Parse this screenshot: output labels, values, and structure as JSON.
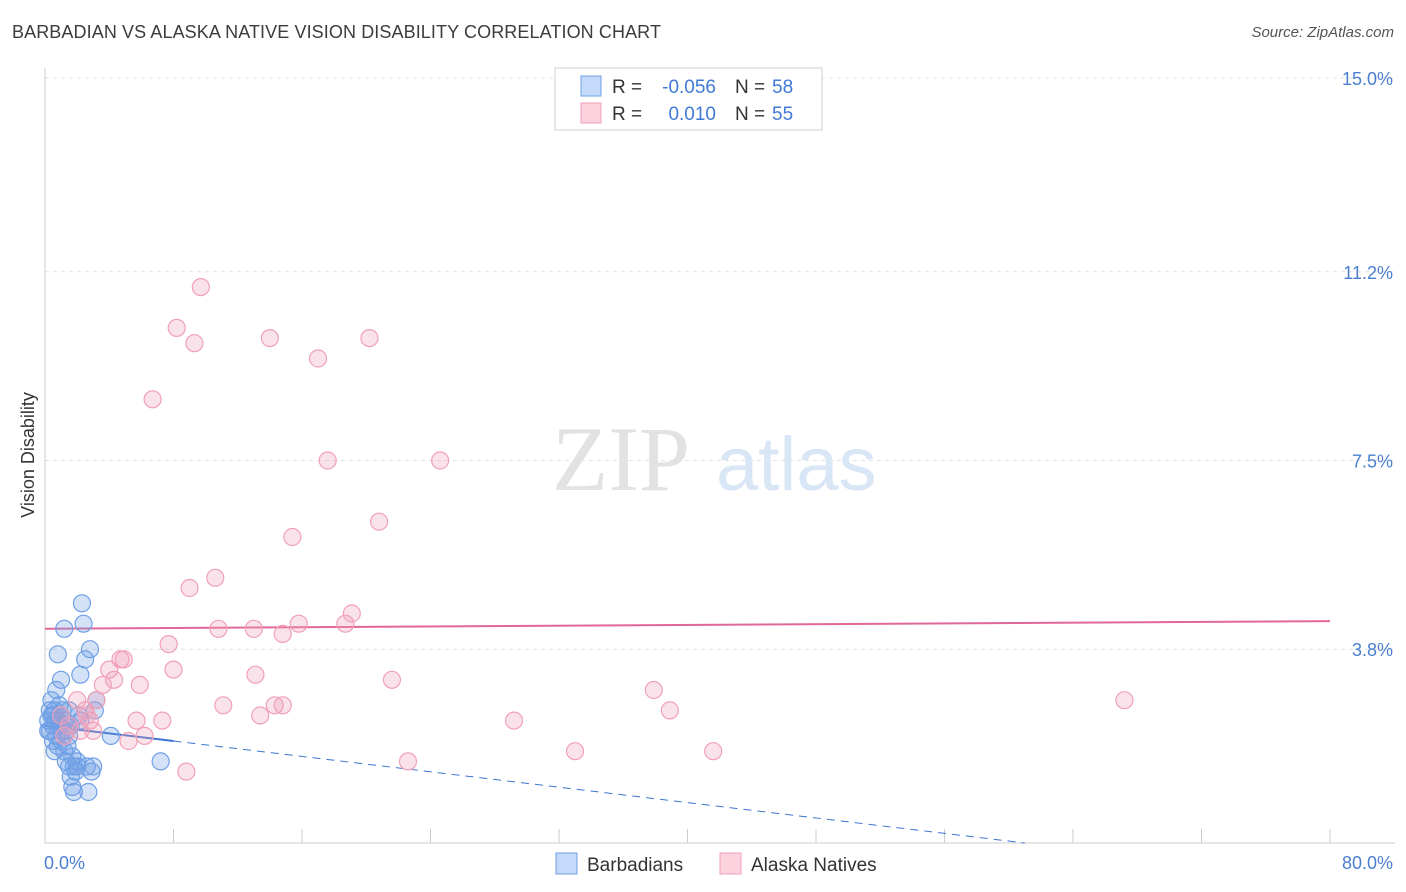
{
  "title": "BARBADIAN VS ALASKA NATIVE VISION DISABILITY CORRELATION CHART",
  "source": "Source: ZipAtlas.com",
  "watermark": {
    "zip": "ZIP",
    "atlas": "atlas"
  },
  "chart_data": {
    "type": "scatter",
    "xlabel": "",
    "ylabel": "Vision Disability",
    "xlim": [
      0,
      80
    ],
    "ylim": [
      0,
      15
    ],
    "x_tick_labels": [
      "0.0%",
      "80.0%"
    ],
    "y_ticks": [
      3.8,
      7.5,
      11.2,
      15.0
    ],
    "y_tick_labels": [
      "3.8%",
      "7.5%",
      "11.2%",
      "15.0%"
    ],
    "grid": true,
    "legend_placement": "top-center",
    "bottom_legend": [
      "Barbadians",
      "Alaska Natives"
    ],
    "stats": [
      {
        "r_label": "R =",
        "r_value": "-0.056",
        "n_label": "N =",
        "n_value": "58"
      },
      {
        "r_label": "R =",
        "r_value": "0.010",
        "n_label": "N =",
        "n_value": "55"
      }
    ],
    "series": [
      {
        "name": "Barbadians",
        "color": "#6fa0e6",
        "trend": {
          "x0": 0,
          "y0": 2.3,
          "x1": 8,
          "y1": 2.0,
          "dashed_to_x": 61,
          "dashed_to_y": 0
        },
        "points": [
          [
            0.2,
            2.4
          ],
          [
            0.3,
            2.2
          ],
          [
            0.4,
            2.5
          ],
          [
            0.5,
            2.3
          ],
          [
            0.6,
            2.6
          ],
          [
            0.7,
            2.1
          ],
          [
            0.8,
            2.4
          ],
          [
            0.5,
            2.0
          ],
          [
            0.6,
            1.8
          ],
          [
            0.9,
            2.7
          ],
          [
            1.0,
            2.5
          ],
          [
            1.1,
            2.2
          ],
          [
            1.2,
            2.4
          ],
          [
            0.4,
            2.8
          ],
          [
            0.7,
            3.0
          ],
          [
            0.8,
            3.7
          ],
          [
            1.0,
            3.2
          ],
          [
            1.2,
            4.2
          ],
          [
            1.5,
            2.6
          ],
          [
            1.6,
            2.3
          ],
          [
            1.4,
            1.9
          ],
          [
            1.3,
            1.6
          ],
          [
            1.5,
            1.5
          ],
          [
            1.6,
            1.3
          ],
          [
            1.7,
            1.1
          ],
          [
            1.8,
            1.0
          ],
          [
            1.9,
            1.4
          ],
          [
            2.0,
            1.6
          ],
          [
            2.1,
            2.5
          ],
          [
            2.2,
            3.3
          ],
          [
            2.3,
            4.7
          ],
          [
            2.4,
            4.3
          ],
          [
            2.5,
            3.6
          ],
          [
            2.6,
            1.5
          ],
          [
            2.7,
            1.0
          ],
          [
            2.8,
            3.8
          ],
          [
            2.9,
            1.4
          ],
          [
            3.0,
            1.5
          ],
          [
            3.1,
            2.6
          ],
          [
            3.2,
            2.8
          ],
          [
            0.9,
            2.3
          ],
          [
            1.1,
            2.6
          ],
          [
            1.3,
            2.2
          ],
          [
            0.3,
            2.6
          ],
          [
            0.6,
            2.4
          ],
          [
            1.0,
            2.0
          ],
          [
            1.4,
            2.3
          ],
          [
            1.7,
            1.7
          ],
          [
            2.0,
            1.5
          ],
          [
            0.2,
            2.2
          ],
          [
            0.5,
            2.5
          ],
          [
            0.8,
            1.9
          ],
          [
            1.2,
            1.8
          ],
          [
            1.5,
            2.1
          ],
          [
            1.8,
            1.5
          ],
          [
            4.1,
            2.1
          ],
          [
            7.2,
            1.6
          ],
          [
            2.2,
            2.4
          ]
        ]
      },
      {
        "name": "Alaska Natives",
        "color": "#f0a0b8",
        "trend": {
          "x0": 0,
          "y0": 4.2,
          "x1": 80,
          "y1": 4.35
        },
        "points": [
          [
            9.7,
            10.9
          ],
          [
            8.2,
            10.1
          ],
          [
            9.3,
            9.8
          ],
          [
            14.0,
            9.9
          ],
          [
            17.0,
            9.5
          ],
          [
            20.2,
            9.9
          ],
          [
            6.7,
            8.7
          ],
          [
            17.6,
            7.5
          ],
          [
            24.6,
            7.5
          ],
          [
            20.8,
            6.3
          ],
          [
            15.4,
            6.0
          ],
          [
            10.6,
            5.2
          ],
          [
            9.0,
            5.0
          ],
          [
            19.1,
            4.5
          ],
          [
            18.7,
            4.3
          ],
          [
            15.8,
            4.3
          ],
          [
            13.0,
            4.2
          ],
          [
            10.8,
            4.2
          ],
          [
            14.8,
            4.1
          ],
          [
            7.7,
            3.9
          ],
          [
            4.7,
            3.6
          ],
          [
            4.9,
            3.6
          ],
          [
            4.0,
            3.4
          ],
          [
            8.0,
            3.4
          ],
          [
            13.1,
            3.3
          ],
          [
            21.6,
            3.2
          ],
          [
            4.3,
            3.2
          ],
          [
            5.9,
            3.1
          ],
          [
            3.6,
            3.1
          ],
          [
            37.9,
            3.0
          ],
          [
            3.2,
            2.8
          ],
          [
            2.0,
            2.8
          ],
          [
            11.1,
            2.7
          ],
          [
            14.3,
            2.7
          ],
          [
            14.8,
            2.7
          ],
          [
            38.9,
            2.6
          ],
          [
            67.2,
            2.8
          ],
          [
            2.5,
            2.6
          ],
          [
            2.8,
            2.4
          ],
          [
            13.4,
            2.5
          ],
          [
            5.7,
            2.4
          ],
          [
            7.3,
            2.4
          ],
          [
            29.2,
            2.4
          ],
          [
            2.2,
            2.2
          ],
          [
            6.2,
            2.1
          ],
          [
            5.2,
            2.0
          ],
          [
            33.0,
            1.8
          ],
          [
            41.6,
            1.8
          ],
          [
            22.6,
            1.6
          ],
          [
            8.8,
            1.4
          ],
          [
            1.0,
            2.5
          ],
          [
            1.5,
            2.3
          ],
          [
            3.0,
            2.2
          ],
          [
            2.6,
            2.5
          ],
          [
            1.2,
            2.1
          ]
        ]
      }
    ]
  }
}
